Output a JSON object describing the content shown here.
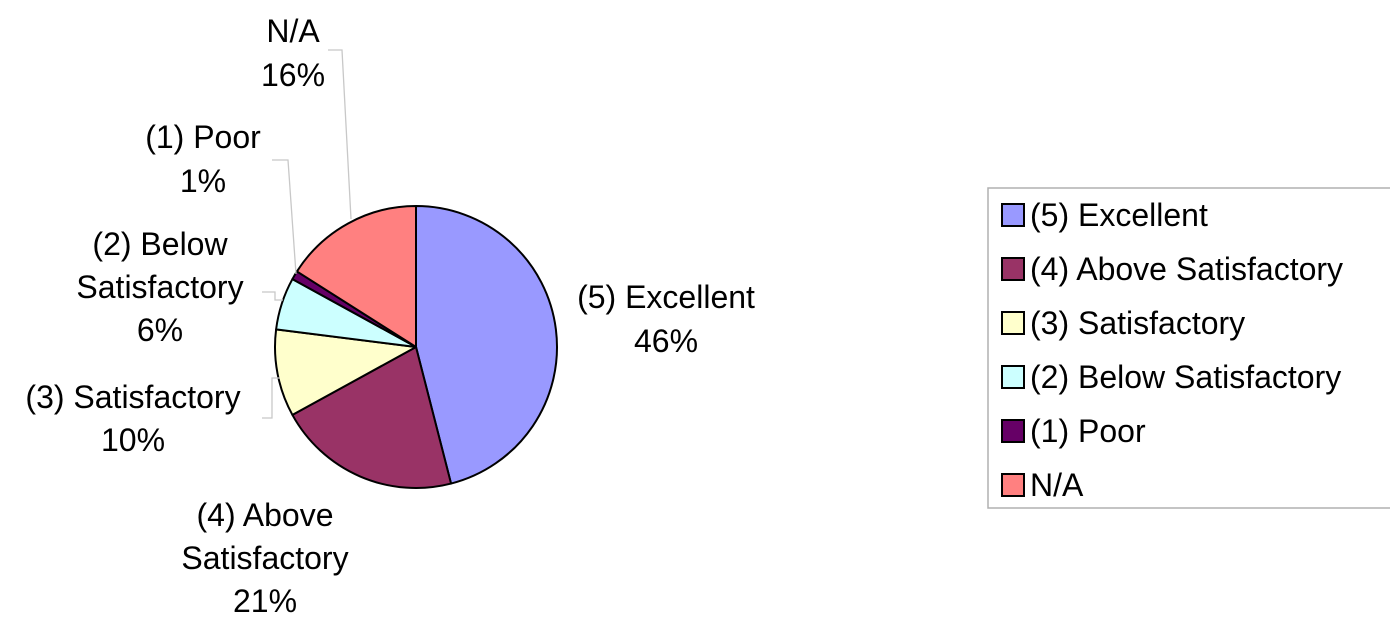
{
  "chart_data": {
    "type": "pie",
    "categories": [
      "(5) Excellent",
      "(4) Above Satisfactory",
      "(3) Satisfactory",
      "(2) Below Satisfactory",
      "(1) Poor",
      "N/A"
    ],
    "values": [
      46,
      21,
      10,
      6,
      1,
      16
    ],
    "percent_labels": [
      "46%",
      "21%",
      "10%",
      "6%",
      "1%",
      "16%"
    ],
    "colors": [
      "#9999ff",
      "#993366",
      "#ffffcc",
      "#ccffff",
      "#660066",
      "#ff8080"
    ],
    "title": "",
    "legend": {
      "placement": "right",
      "items": [
        "(5) Excellent",
        "(4) Above Satisfactory",
        "(3) Satisfactory",
        "(2) Below Satisfactory",
        "(1) Poor",
        "N/A"
      ]
    }
  }
}
